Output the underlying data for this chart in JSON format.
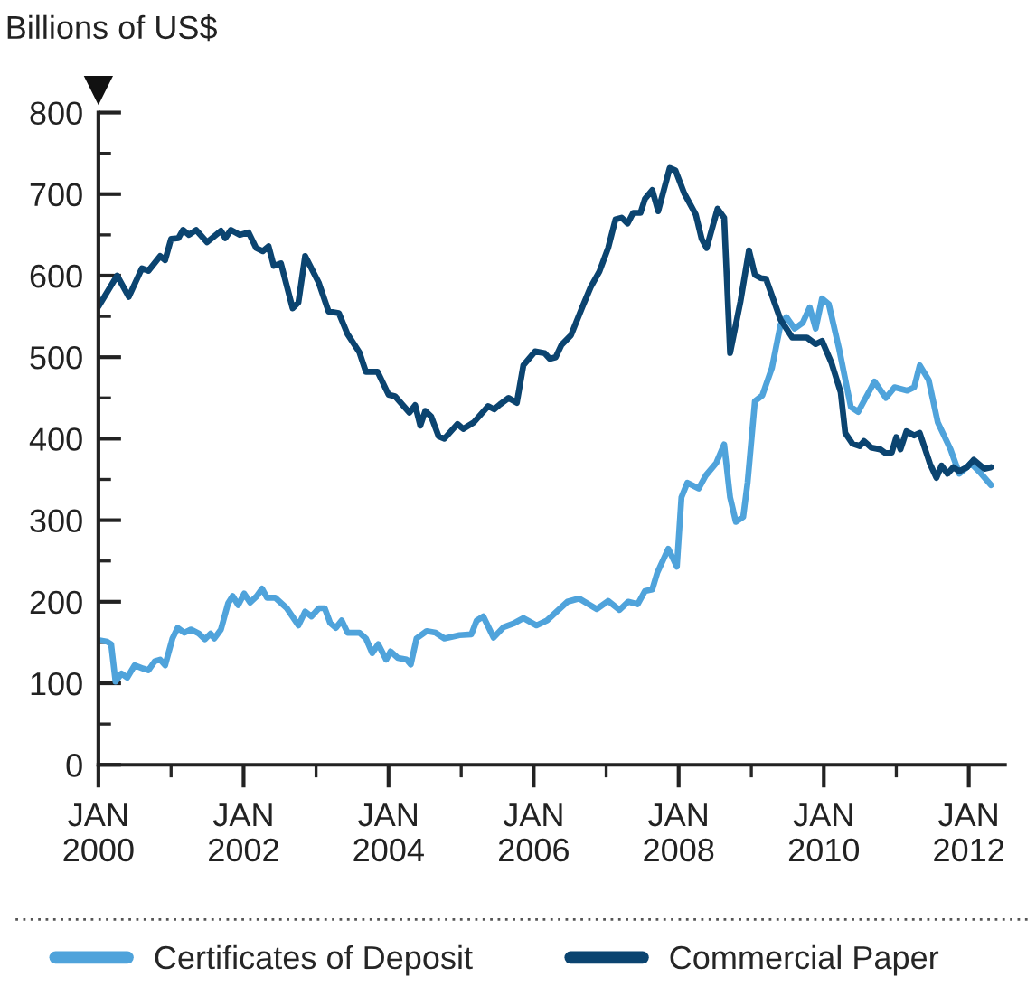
{
  "chart_data": {
    "type": "line",
    "ylabel": "Billions of US$",
    "xlim": [
      "2000-01-01",
      "2012-07-01"
    ],
    "ylim": [
      0,
      800
    ],
    "xticks": [
      {
        "value": "2000-01-01",
        "label": "JAN\n2000"
      },
      {
        "value": "2001-01-01",
        "label": null
      },
      {
        "value": "2002-01-01",
        "label": "JAN\n2002"
      },
      {
        "value": "2003-01-01",
        "label": null
      },
      {
        "value": "2004-01-01",
        "label": "JAN\n2004"
      },
      {
        "value": "2005-01-01",
        "label": null
      },
      {
        "value": "2006-01-01",
        "label": "JAN\n2006"
      },
      {
        "value": "2007-01-01",
        "label": null
      },
      {
        "value": "2008-01-01",
        "label": "JAN\n2008"
      },
      {
        "value": "2009-01-01",
        "label": null
      },
      {
        "value": "2010-01-01",
        "label": "JAN\n2010"
      },
      {
        "value": "2011-01-01",
        "label": null
      },
      {
        "value": "2012-01-01",
        "label": "JAN\n2012"
      }
    ],
    "yticks": [
      0,
      {
        "value": 50,
        "label": null
      },
      100,
      {
        "value": 150,
        "label": null
      },
      200,
      {
        "value": 250,
        "label": null
      },
      300,
      {
        "value": 350,
        "label": null
      },
      400,
      {
        "value": 450,
        "label": null
      },
      500,
      {
        "value": 550,
        "label": null
      },
      600,
      {
        "value": 650,
        "label": null
      },
      700,
      {
        "value": 750,
        "label": null
      },
      800
    ],
    "grid": false,
    "legend": "bottom",
    "line_style": "solid",
    "marker": "none",
    "series": [
      {
        "name": "Certificates of Deposit",
        "color": "#4fa3db",
        "x": [
          "2000-01-01",
          "2000-02-14",
          "2000-03-05",
          "2000-03-27",
          "2000-04-26",
          "2000-05-25",
          "2000-07-01",
          "2000-08-14",
          "2000-09-09",
          "2000-10-11",
          "2000-11-07",
          "2000-12-02",
          "2001-01-08",
          "2001-02-03",
          "2001-03-09",
          "2001-04-11",
          "2001-05-21",
          "2001-06-20",
          "2001-07-19",
          "2001-08-07",
          "2001-09-09",
          "2001-10-15",
          "2001-11-07",
          "2001-12-05",
          "2002-01-04",
          "2002-02-03",
          "2002-03-09",
          "2002-04-04",
          "2002-04-29",
          "2002-06-09",
          "2002-08-07",
          "2002-10-04",
          "2002-11-07",
          "2002-12-09",
          "2003-01-15",
          "2003-02-14",
          "2003-03-13",
          "2003-04-11",
          "2003-05-10",
          "2003-06-09",
          "2003-08-07",
          "2003-09-09",
          "2003-10-11",
          "2003-11-10",
          "2003-12-20",
          "2004-01-11",
          "2004-02-17",
          "2004-04-01",
          "2004-04-22",
          "2004-05-21",
          "2004-07-11",
          "2004-08-25",
          "2004-10-08",
          "2004-12-23",
          "2005-02-21",
          "2005-03-20",
          "2005-04-22",
          "2005-06-13",
          "2005-08-03",
          "2005-09-27",
          "2005-11-10",
          "2006-01-15",
          "2006-03-09",
          "2006-06-20",
          "2006-08-17",
          "2006-11-14",
          "2007-01-11",
          "2007-03-09",
          "2007-04-22",
          "2007-06-09",
          "2007-07-15",
          "2007-08-21",
          "2007-09-16",
          "2007-11-10",
          "2007-12-23",
          "2008-01-15",
          "2008-02-14",
          "2008-04-11",
          "2008-05-17",
          "2008-07-08",
          "2008-08-17",
          "2008-09-16",
          "2008-10-15",
          "2008-11-21",
          "2008-12-13",
          "2009-01-19",
          "2009-02-25",
          "2009-04-15",
          "2009-05-28",
          "2009-06-27",
          "2009-08-07",
          "2009-09-16",
          "2009-10-22",
          "2009-11-21",
          "2009-12-23",
          "2010-01-26",
          "2010-03-20",
          "2010-05-17",
          "2010-06-23",
          "2010-09-13",
          "2010-11-10",
          "2010-12-23",
          "2011-02-25",
          "2011-04-01",
          "2011-04-29",
          "2011-06-13",
          "2011-07-29",
          "2011-09-02",
          "2011-10-01",
          "2011-11-14",
          "2011-12-23",
          "2012-01-11",
          "2012-02-25",
          "2012-04-22"
        ],
        "values": [
          153,
          151,
          148,
          102,
          112,
          107,
          122,
          118,
          116,
          127,
          129,
          122,
          155,
          168,
          162,
          166,
          161,
          154,
          161,
          155,
          166,
          198,
          207,
          196,
          210,
          199,
          207,
          216,
          205,
          205,
          192,
          171,
          188,
          182,
          192,
          192,
          174,
          168,
          177,
          162,
          162,
          155,
          137,
          148,
          129,
          139,
          131,
          129,
          123,
          155,
          164,
          162,
          155,
          159,
          160,
          177,
          182,
          156,
          169,
          174,
          180,
          171,
          177,
          200,
          204,
          191,
          201,
          190,
          200,
          197,
          213,
          215,
          236,
          265,
          243,
          328,
          346,
          339,
          355,
          370,
          393,
          328,
          298,
          304,
          346,
          446,
          453,
          487,
          540,
          549,
          535,
          542,
          561,
          535,
          572,
          565,
          509,
          439,
          433,
          470,
          450,
          463,
          459,
          463,
          490,
          472,
          420,
          402,
          387,
          357,
          365,
          370,
          359,
          343
        ]
      },
      {
        "name": "Commercial Paper",
        "color": "#0b4470",
        "x": [
          "2000-01-01",
          "2000-04-04",
          "2000-06-02",
          "2000-08-07",
          "2000-09-09",
          "2000-11-07",
          "2000-12-02",
          "2001-01-01",
          "2001-02-07",
          "2001-03-02",
          "2001-04-01",
          "2001-05-07",
          "2001-07-01",
          "2001-09-09",
          "2001-10-01",
          "2001-10-29",
          "2001-12-13",
          "2002-01-26",
          "2002-03-05",
          "2002-04-08",
          "2002-05-07",
          "2002-06-02",
          "2002-07-08",
          "2002-09-05",
          "2002-10-04",
          "2002-11-07",
          "2003-01-15",
          "2003-03-05",
          "2003-04-26",
          "2003-06-09",
          "2003-08-07",
          "2003-09-09",
          "2003-11-07",
          "2004-01-01",
          "2004-02-03",
          "2004-04-15",
          "2004-05-14",
          "2004-06-09",
          "2004-07-04",
          "2004-08-03",
          "2004-09-09",
          "2004-10-08",
          "2004-12-13",
          "2005-01-11",
          "2005-03-05",
          "2005-05-17",
          "2005-06-16",
          "2005-07-15",
          "2005-08-28",
          "2005-10-08",
          "2005-11-10",
          "2006-01-08",
          "2006-02-25",
          "2006-03-23",
          "2006-04-22",
          "2006-05-21",
          "2006-07-08",
          "2006-09-02",
          "2006-10-15",
          "2006-11-28",
          "2007-01-11",
          "2007-02-17",
          "2007-03-20",
          "2007-04-19",
          "2007-05-17",
          "2007-06-23",
          "2007-07-15",
          "2007-08-21",
          "2007-09-20",
          "2007-11-17",
          "2007-12-16",
          "2008-01-29",
          "2008-03-27",
          "2008-04-26",
          "2008-05-21",
          "2008-07-15",
          "2008-08-17",
          "2008-09-16",
          "2008-11-07",
          "2008-12-20",
          "2009-01-19",
          "2009-02-17",
          "2009-03-16",
          "2009-05-28",
          "2009-07-26",
          "2009-10-08",
          "2009-11-21",
          "2009-12-23",
          "2010-02-07",
          "2010-03-27",
          "2010-04-19",
          "2010-05-25",
          "2010-07-01",
          "2010-07-22",
          "2010-08-28",
          "2010-10-11",
          "2010-11-10",
          "2010-12-09",
          "2011-01-01",
          "2011-01-22",
          "2011-02-21",
          "2011-04-01",
          "2011-04-29",
          "2011-06-20",
          "2011-07-22",
          "2011-08-17",
          "2011-09-16",
          "2011-10-15",
          "2011-11-14",
          "2011-12-23",
          "2012-01-26",
          "2012-03-20",
          "2012-04-22"
        ],
        "values": [
          562,
          600,
          574,
          609,
          606,
          624,
          619,
          645,
          646,
          656,
          650,
          656,
          641,
          655,
          646,
          656,
          650,
          653,
          634,
          630,
          636,
          612,
          615,
          560,
          567,
          624,
          591,
          556,
          554,
          528,
          506,
          482,
          482,
          454,
          452,
          432,
          441,
          416,
          434,
          427,
          403,
          400,
          418,
          412,
          420,
          440,
          436,
          442,
          450,
          444,
          490,
          507,
          505,
          498,
          500,
          515,
          527,
          561,
          586,
          605,
          634,
          669,
          671,
          664,
          677,
          677,
          694,
          705,
          679,
          732,
          729,
          701,
          675,
          645,
          634,
          682,
          671,
          505,
          568,
          631,
          601,
          597,
          596,
          546,
          524,
          524,
          516,
          520,
          494,
          457,
          407,
          394,
          391,
          397,
          389,
          387,
          382,
          383,
          402,
          387,
          409,
          404,
          407,
          369,
          352,
          367,
          357,
          365,
          360,
          365,
          374,
          363,
          365
        ]
      }
    ]
  }
}
